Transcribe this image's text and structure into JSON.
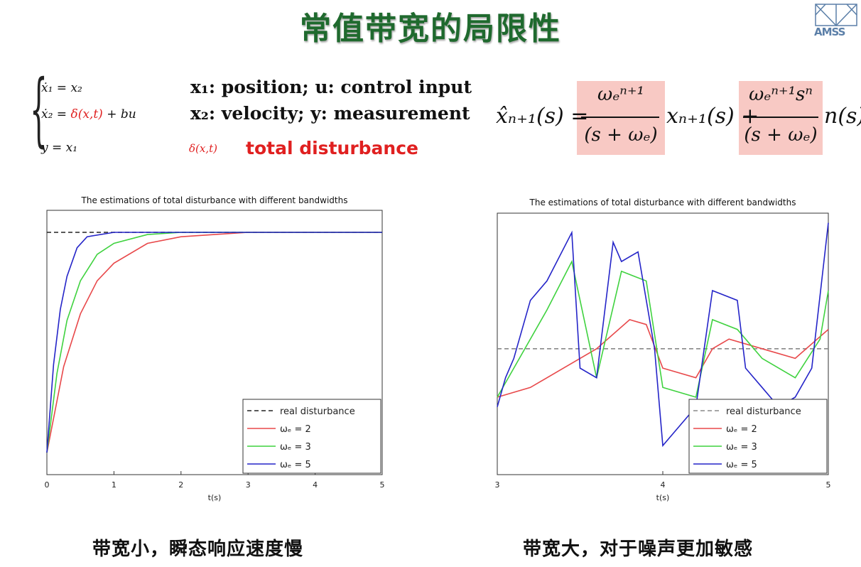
{
  "slide": {
    "title": "常值带宽的局限性",
    "logo_text": "AMSS"
  },
  "system": {
    "eq1": "ẋ₁ = x₂",
    "eq2_lhs": "ẋ₂ = ",
    "eq2_delta": "δ(x,t)",
    "eq2_rhs": " + bu",
    "eq3": "y = x₁",
    "desc1": "x₁: position; u: control input",
    "desc2": "x₂: velocity;  y: measurement",
    "disturbance_symbol": "δ(x,t)",
    "disturbance_label": "total disturbance"
  },
  "estimator": {
    "lhs": "x̂ₙ₊₁(s) =",
    "num1": "ωₑⁿ⁺¹",
    "den1": "(s + ωₑ)",
    "mid": "xₙ₊₁(s) +",
    "num2": "ωₑⁿ⁺¹sⁿ",
    "den2": "(s + ωₑ)",
    "tail": "n(s)"
  },
  "captions": {
    "left": "带宽小，瞬态响应速度慢",
    "right": "带宽大，对于噪声更加敏感"
  },
  "chart_data": [
    {
      "type": "line",
      "title": "The estimations of total disturbance with different bandwidths",
      "xlabel": "t(s)",
      "ylabel": "",
      "xlim": [
        0,
        5
      ],
      "ylim": [
        -0.1,
        1.1
      ],
      "x_ticks": [
        "0",
        "1",
        "2",
        "3",
        "4",
        "5"
      ],
      "grid": false,
      "legend_position": "bottom-right",
      "series": [
        {
          "name": "real disturbance",
          "style": "dashed",
          "color": "#222222",
          "x": [
            0,
            5
          ],
          "y": [
            1,
            1
          ]
        },
        {
          "name": "ωₑ = 2",
          "style": "solid",
          "color": "#e8484a",
          "x": [
            0,
            0.25,
            0.5,
            0.75,
            1,
            1.5,
            2,
            2.5,
            3,
            3.5,
            4,
            4.5,
            5
          ],
          "y": [
            0,
            0.39,
            0.63,
            0.78,
            0.86,
            0.95,
            0.98,
            0.99,
            1.0,
            1.0,
            1.0,
            1.0,
            1.0
          ]
        },
        {
          "name": "ωₑ = 3",
          "style": "solid",
          "color": "#3fd23f",
          "x": [
            0,
            0.15,
            0.3,
            0.5,
            0.75,
            1,
            1.5,
            2,
            3,
            4,
            5
          ],
          "y": [
            0,
            0.36,
            0.6,
            0.78,
            0.9,
            0.95,
            0.99,
            1.0,
            1.0,
            1.0,
            1.0
          ]
        },
        {
          "name": "ωₑ = 5",
          "style": "solid",
          "color": "#2424c8",
          "x": [
            0,
            0.1,
            0.2,
            0.3,
            0.45,
            0.6,
            1,
            2,
            3,
            4,
            5
          ],
          "y": [
            0,
            0.4,
            0.65,
            0.8,
            0.93,
            0.98,
            1.0,
            1.0,
            1.0,
            1.0,
            1.0
          ]
        }
      ]
    },
    {
      "type": "line",
      "title": "The estimations of total disturbance with different bandwidths",
      "xlabel": "t(s)",
      "ylabel": "",
      "xlim": [
        3,
        5
      ],
      "ylim": [
        -1.3,
        1.4
      ],
      "x_ticks": [
        "3",
        "4",
        "5"
      ],
      "grid": false,
      "legend_position": "bottom-right",
      "series": [
        {
          "name": "real disturbance",
          "style": "dashed",
          "color": "#888888",
          "x": [
            3,
            5
          ],
          "y": [
            0,
            0
          ]
        },
        {
          "name": "ωₑ = 2",
          "style": "solid",
          "color": "#e8484a",
          "x": [
            3,
            3.2,
            3.4,
            3.6,
            3.8,
            3.9,
            4.0,
            4.2,
            4.3,
            4.4,
            4.6,
            4.8,
            5
          ],
          "y": [
            -0.5,
            -0.4,
            -0.2,
            0.0,
            0.3,
            0.25,
            -0.2,
            -0.3,
            0.0,
            0.1,
            0.0,
            -0.1,
            0.2
          ]
        },
        {
          "name": "ωₑ = 3",
          "style": "solid",
          "color": "#3fd23f",
          "x": [
            3,
            3.1,
            3.3,
            3.45,
            3.6,
            3.75,
            3.9,
            4.0,
            4.2,
            4.3,
            4.45,
            4.6,
            4.8,
            4.95,
            5
          ],
          "y": [
            -0.5,
            -0.2,
            0.4,
            0.9,
            -0.3,
            0.8,
            0.7,
            -0.4,
            -0.5,
            0.3,
            0.2,
            -0.1,
            -0.3,
            0.1,
            0.6
          ]
        },
        {
          "name": "ωₑ = 5",
          "style": "solid",
          "color": "#2424c8",
          "x": [
            3,
            3.05,
            3.1,
            3.2,
            3.3,
            3.45,
            3.5,
            3.6,
            3.7,
            3.75,
            3.85,
            3.95,
            4.0,
            4.1,
            4.2,
            4.3,
            4.45,
            4.5,
            4.6,
            4.7,
            4.8,
            4.9,
            5
          ],
          "y": [
            -0.6,
            -0.3,
            -0.1,
            0.5,
            0.7,
            1.2,
            -0.2,
            -0.3,
            1.1,
            0.9,
            1.0,
            0.0,
            -1.0,
            -0.8,
            -0.6,
            0.6,
            0.5,
            -0.2,
            -0.4,
            -0.6,
            -0.5,
            -0.2,
            1.3
          ]
        }
      ]
    }
  ]
}
